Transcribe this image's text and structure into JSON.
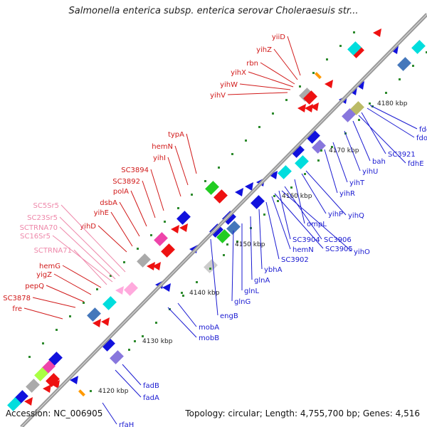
{
  "title": "Salmonella enterica subsp. enterica serovar Choleraesuis str...",
  "footer": {
    "accession": "Accession: NC_006905",
    "summary": "Topology: circular; Length: 4,755,700 bp; Genes: 4,516"
  },
  "colors": {
    "backbone": "#999999",
    "tick": "#2e8b2e",
    "red_label": "#d11a1a",
    "blue_label": "#1a1ad1",
    "rna_label": "#ee88aa"
  },
  "scale_labels": [
    "4120 kbp",
    "4130 kbp",
    "4140 kbp",
    "4150 kbp",
    "4160 kbp",
    "4170 kbp",
    "4180 kbp"
  ],
  "upper_genes": [
    "yiiD",
    "yihZ",
    "rbn",
    "yihX",
    "yihW",
    "yihV",
    "typA",
    "hemN",
    "yihI",
    "SC3894",
    "SC3892",
    "polA",
    "dsbA",
    "yihE",
    "yihD",
    "hemG",
    "yigZ",
    "pepQ",
    "SC3878",
    "fre"
  ],
  "rna_genes": [
    "SC5Sr5",
    "SC23Sr5",
    "SCTRNA70",
    "SC16Sr5",
    "SCTRNA71"
  ],
  "lower_genes": [
    "fdoH",
    "fdoI",
    "SC3921",
    "fdhE",
    "bah",
    "yihU",
    "yihT",
    "yihR",
    "yihQ",
    "yihP",
    "ompL",
    "SC3906",
    "SC3904",
    "SC3905",
    "yihO",
    "hemN",
    "SC3902",
    "ybhA",
    "glnA",
    "glnL",
    "glnG",
    "engB",
    "mobA",
    "mobB",
    "fadB",
    "fadA",
    "rfaH"
  ]
}
